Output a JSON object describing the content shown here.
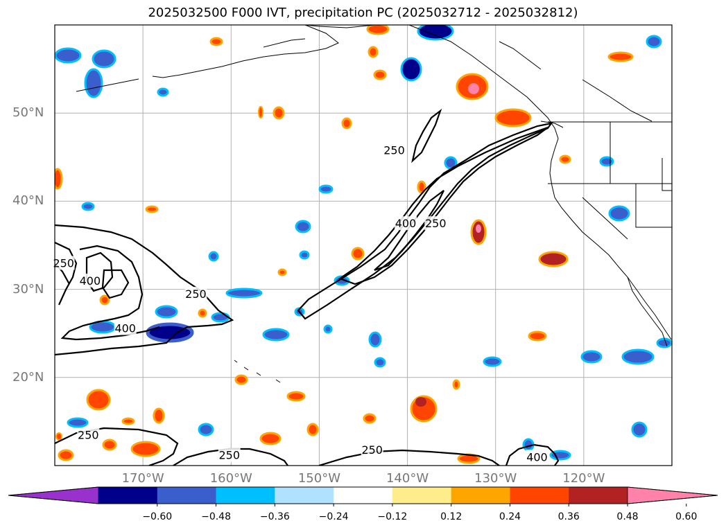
{
  "title": "2025032500 F000 IVT, precipitation PC (2025032712 - 2025032812)",
  "map": {
    "lon_range": [
      -180,
      -110
    ],
    "lat_range": [
      10,
      60
    ],
    "lat_labels": [
      {
        "lat": 50,
        "text": "50°N"
      },
      {
        "lat": 40,
        "text": "40°N"
      },
      {
        "lat": 30,
        "text": "30°N"
      },
      {
        "lat": 20,
        "text": "20°N"
      }
    ],
    "lon_labels": [
      {
        "lon": -170,
        "text": "170°W"
      },
      {
        "lon": -160,
        "text": "160°W"
      },
      {
        "lon": -150,
        "text": "150°W"
      },
      {
        "lon": -140,
        "text": "140°W"
      },
      {
        "lon": -130,
        "text": "130°W"
      },
      {
        "lon": -120,
        "text": "120°W"
      }
    ],
    "contour_labels": [
      {
        "text": "250",
        "lon": -141.5,
        "lat": 45.8
      },
      {
        "text": "400",
        "lon": -140.2,
        "lat": 37.5
      },
      {
        "text": "250",
        "lon": -136.8,
        "lat": 37.5
      },
      {
        "text": "250",
        "lon": -179.0,
        "lat": 33.0
      },
      {
        "text": "400",
        "lon": -176.0,
        "lat": 31.0
      },
      {
        "text": "250",
        "lon": -164.0,
        "lat": 29.5
      },
      {
        "text": "400",
        "lon": -172.0,
        "lat": 25.6
      },
      {
        "text": "250",
        "lon": -176.2,
        "lat": 13.5
      },
      {
        "text": "250",
        "lon": -160.2,
        "lat": 11.2
      },
      {
        "text": "250",
        "lon": -144.0,
        "lat": 11.8
      },
      {
        "text": "400",
        "lon": -125.3,
        "lat": 11.0
      }
    ]
  },
  "colorbar": {
    "levels": [
      "−0.60",
      "−0.48",
      "−0.36",
      "−0.24",
      "−0.12",
      "0.12",
      "0.24",
      "0.36",
      "0.48",
      "0.60"
    ],
    "colors": [
      "#9932cc",
      "#00008b",
      "#3a5fcd",
      "#00bfff",
      "#b0e2ff",
      "#ffffff",
      "#ffec8b",
      "#ffa500",
      "#ff4500",
      "#b22222",
      "#ff82ab"
    ]
  },
  "colors": {
    "gridline": "#b0b0b0",
    "coast": "#000000",
    "tick_label": "#777777"
  }
}
